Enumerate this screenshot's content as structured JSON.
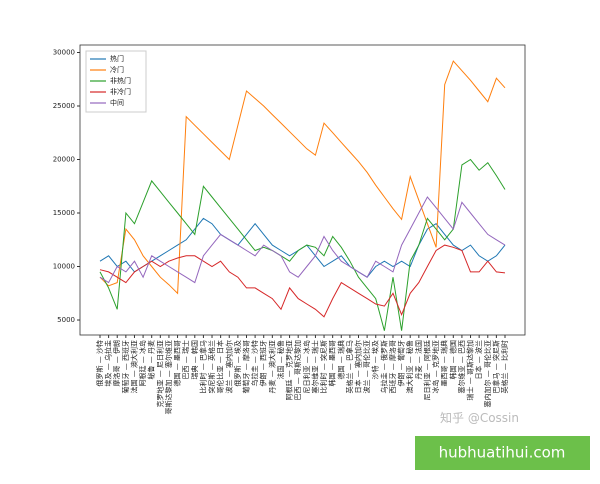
{
  "chart_data": {
    "type": "line",
    "categories": [
      "俄罗斯 — 沙特",
      "埃及 — 乌拉圭",
      "摩洛哥 — 伊朗",
      "葡萄牙 — 西班牙",
      "法国 — 澳大利亚",
      "阿根廷 — 冰岛",
      "秘鲁 — 丹麦",
      "克罗地亚 — 尼日利亚",
      "哥斯达黎加 — 塞尔维亚",
      "德国 — 墨西哥",
      "巴西 — 瑞士",
      "瑞典 — 韩国",
      "比利时 — 巴拿马",
      "突尼斯 — 英格兰",
      "哥伦比亚 — 日本",
      "波兰 — 塞内加尔",
      "俄罗斯 — 埃及",
      "葡萄牙 — 摩洛哥",
      "乌拉圭 — 沙特",
      "伊朗 — 西班牙",
      "丹麦 — 澳大利亚",
      "法国 — 秘鲁",
      "阿根廷 — 克罗地亚",
      "巴西 — 哥斯达黎加",
      "尼日利亚 — 冰岛",
      "塞尔维亚 — 瑞士",
      "比利时 — 突尼斯",
      "韩国 — 墨西哥",
      "德国 — 瑞典",
      "英格兰 — 巴拿马",
      "日本 — 塞内加尔",
      "波兰 — 哥伦比亚",
      "沙特 — 埃及",
      "乌拉圭 — 俄罗斯",
      "西班牙 — 摩洛哥",
      "伊朗 — 葡萄牙",
      "澳大利亚 — 秘鲁",
      "丹麦 — 法国",
      "尼日利亚 — 阿根廷",
      "冰岛 — 克罗地亚",
      "墨西哥 — 瑞典",
      "韩国 — 德国",
      "塞尔维亚 — 巴西",
      "瑞士 — 哥斯达黎加",
      "日本 — 波兰",
      "塞内加尔 — 哥伦比亚",
      "巴拿马 — 突尼斯",
      "英格兰 — 比利时"
    ],
    "series": [
      {
        "name": "热门",
        "color": "#1f77b4",
        "values": [
          10500,
          11000,
          10000,
          10500,
          9500,
          10000,
          10500,
          11000,
          11500,
          12000,
          12500,
          13500,
          14500,
          14000,
          13000,
          12500,
          12000,
          13000,
          14000,
          13000,
          12000,
          11500,
          11000,
          11500,
          12000,
          11000,
          10000,
          10500,
          11000,
          10000,
          9500,
          9000,
          10000,
          10500,
          10000,
          10500,
          10000,
          12000,
          13500,
          14000,
          13000,
          12000,
          11500,
          12000,
          11000,
          10500,
          11000,
          12000
        ]
      },
      {
        "name": "冷门",
        "color": "#ff7f0e",
        "values": [
          9000,
          8200,
          8500,
          13500,
          12500,
          11000,
          10000,
          9000,
          8300,
          7500,
          24000,
          23200,
          22400,
          21600,
          20800,
          20000,
          23200,
          26400,
          25700,
          25000,
          24200,
          23400,
          22600,
          21800,
          21000,
          20400,
          23400,
          22500,
          21600,
          20700,
          19800,
          18800,
          17600,
          16500,
          15400,
          14400,
          18400,
          16200,
          14000,
          11800,
          27000,
          29200,
          28300,
          27400,
          26400,
          25400,
          27600,
          26700
        ]
      },
      {
        "name": "非热门",
        "color": "#2ca02c",
        "values": [
          9500,
          8000,
          6000,
          15000,
          14000,
          16000,
          18000,
          17000,
          16000,
          15000,
          14000,
          13000,
          17500,
          16500,
          15500,
          14500,
          13500,
          12500,
          11500,
          11800,
          11500,
          11000,
          10500,
          11500,
          12000,
          11800,
          11000,
          12800,
          11800,
          10500,
          9000,
          8000,
          7000,
          4000,
          9000,
          4000,
          10500,
          12000,
          14500,
          13500,
          12500,
          13500,
          19500,
          20000,
          19000,
          19700,
          18500,
          17200
        ]
      },
      {
        "name": "非冷门",
        "color": "#d62728",
        "values": [
          9700,
          9500,
          9000,
          8500,
          9500,
          10000,
          10500,
          10000,
          10500,
          10800,
          11000,
          11000,
          10500,
          10000,
          10500,
          9500,
          9000,
          8000,
          8000,
          7500,
          7000,
          6000,
          8000,
          7000,
          6500,
          6000,
          5300,
          7000,
          8500,
          8000,
          7500,
          7000,
          6500,
          6300,
          7500,
          5500,
          7500,
          8500,
          10000,
          11500,
          12000,
          11800,
          11500,
          9500,
          9500,
          10500,
          9500,
          9400
        ]
      },
      {
        "name": "中间",
        "color": "#9467bd",
        "values": [
          9000,
          8500,
          10000,
          9500,
          10500,
          9000,
          11000,
          10500,
          10000,
          9500,
          9000,
          8500,
          11000,
          12000,
          13000,
          12500,
          12000,
          11500,
          11000,
          12000,
          11500,
          11000,
          9500,
          9000,
          10000,
          11000,
          12800,
          11500,
          10500,
          10000,
          9500,
          9000,
          10500,
          10000,
          9500,
          12000,
          13500,
          15000,
          16500,
          15500,
          14500,
          13500,
          16000,
          15000,
          14000,
          13000,
          12500,
          12000
        ]
      }
    ],
    "ylim": [
      3600,
      30700
    ],
    "yticks": [
      5000,
      10000,
      15000,
      20000,
      25000,
      30000
    ],
    "grid": false,
    "legend": "upper-left"
  },
  "watermark": "知乎 @Cossin",
  "badge": "hubhuatihui.com"
}
